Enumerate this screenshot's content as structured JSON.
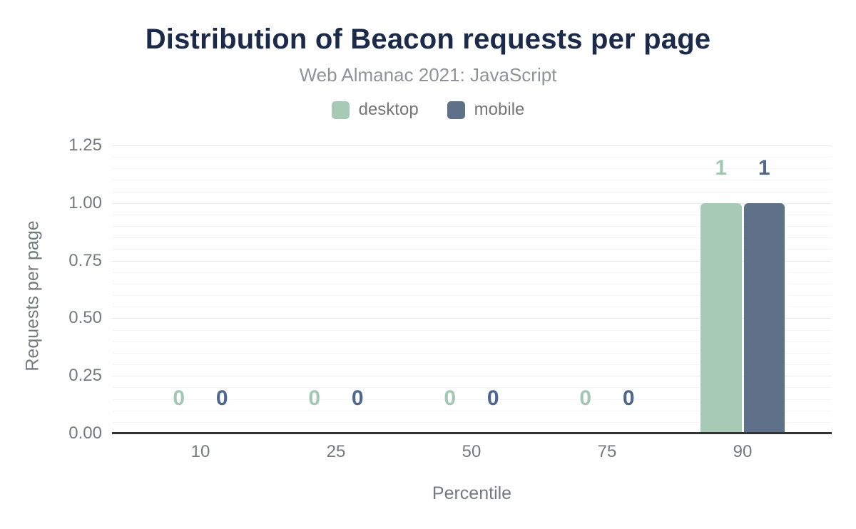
{
  "chart_data": {
    "type": "bar",
    "title": "Distribution of Beacon requests per page",
    "subtitle": "Web Almanac 2021: JavaScript",
    "xlabel": "Percentile",
    "ylabel": "Requests per page",
    "categories": [
      "10",
      "25",
      "50",
      "75",
      "90"
    ],
    "series": [
      {
        "name": "desktop",
        "color": "#a6cab6",
        "label_color": "#a2c8b3",
        "values": [
          0,
          0,
          0,
          0,
          1
        ]
      },
      {
        "name": "mobile",
        "color": "#5f7189",
        "label_color": "#50678c",
        "values": [
          0,
          0,
          0,
          0,
          1
        ]
      }
    ],
    "ylim": [
      0,
      1.25
    ],
    "ytick_labels": [
      "0.00",
      "0.25",
      "0.50",
      "0.75",
      "1.00",
      "1.25"
    ],
    "major_tick_step": 0.25,
    "minor_tick_step": 0.05,
    "grid": "horizontal major+minor",
    "legend_position": "top",
    "data_labels_shown": true
  },
  "colors": {
    "title": "#1c2a4a",
    "subtitle": "#8f9397",
    "axis_text": "#75797f",
    "legend_text": "#757575",
    "grid_major": "#e9e9ea",
    "grid_minor": "#f5f5f6",
    "baseline": "#333333",
    "background": "#ffffff"
  }
}
